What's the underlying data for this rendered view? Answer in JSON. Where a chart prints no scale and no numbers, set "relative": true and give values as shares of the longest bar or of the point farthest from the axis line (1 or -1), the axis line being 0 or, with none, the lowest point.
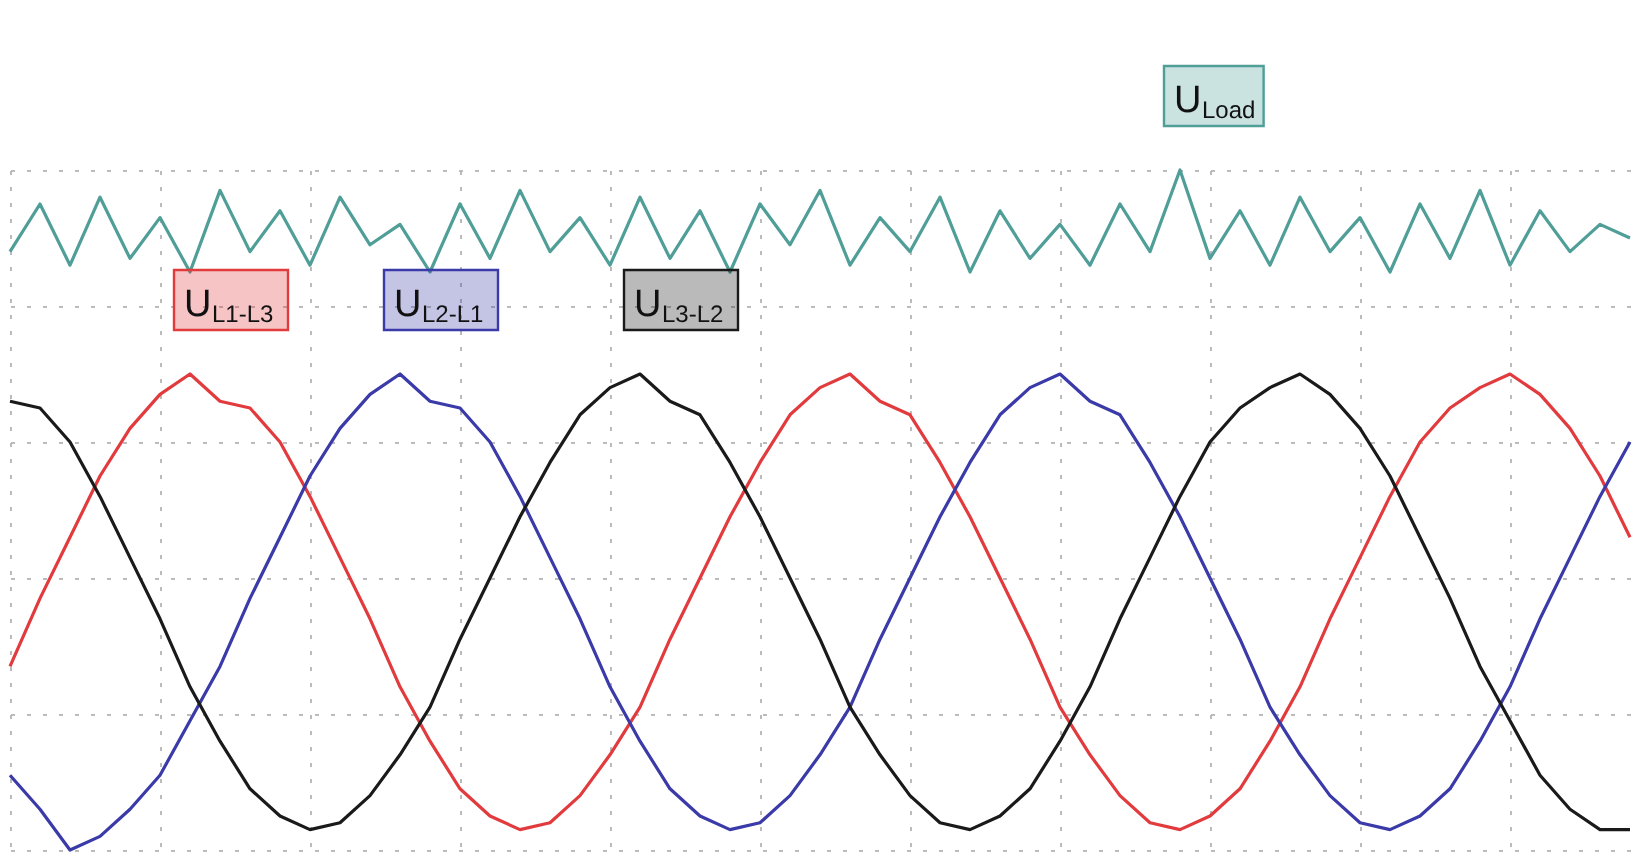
{
  "chart_data": {
    "type": "line",
    "relative": true,
    "grid": true,
    "legend": false,
    "categories": [
      null,
      null,
      null,
      null,
      null,
      null,
      null,
      null,
      null,
      null,
      null,
      null,
      null,
      null,
      null,
      null,
      null,
      null,
      null,
      null,
      null,
      null,
      null,
      null,
      null,
      null,
      null,
      null,
      null,
      null,
      null,
      null,
      null,
      null,
      null,
      null,
      null,
      null,
      null,
      null,
      null,
      null,
      null,
      null,
      null,
      null,
      null,
      null,
      null,
      null,
      null,
      null,
      null,
      null,
      null
    ],
    "series": [
      {
        "name": "U$_{Load}$",
        "color": "#4f9e97",
        "values": [
          0.88,
          0.95,
          0.86,
          0.96,
          0.87,
          0.93,
          0.85,
          0.97,
          0.88,
          0.94,
          0.86,
          0.96,
          0.89,
          0.92,
          0.85,
          0.95,
          0.87,
          0.97,
          0.88,
          0.93,
          0.86,
          0.96,
          0.87,
          0.94,
          0.85,
          0.95,
          0.89,
          0.97,
          0.86,
          0.93,
          0.88,
          0.96,
          0.85,
          0.94,
          0.87,
          0.92,
          0.86,
          0.95,
          0.88,
          1.0,
          0.87,
          0.94,
          0.86,
          0.96,
          0.88,
          0.93,
          0.85,
          0.95,
          0.87,
          0.97,
          0.86,
          0.94,
          0.88,
          0.92,
          0.9
        ]
      },
      {
        "name": "U$_{L1-L3}$",
        "color": "#e23b3e",
        "values": [
          0.27,
          0.37,
          0.46,
          0.55,
          0.62,
          0.67,
          0.7,
          0.66,
          0.65,
          0.6,
          0.52,
          0.43,
          0.34,
          0.24,
          0.16,
          0.09,
          0.05,
          0.03,
          0.04,
          0.08,
          0.14,
          0.21,
          0.31,
          0.4,
          0.49,
          0.57,
          0.64,
          0.68,
          0.7,
          0.66,
          0.64,
          0.57,
          0.49,
          0.4,
          0.31,
          0.21,
          0.14,
          0.08,
          0.04,
          0.03,
          0.05,
          0.09,
          0.16,
          0.24,
          0.34,
          0.43,
          0.52,
          0.6,
          0.65,
          0.68,
          0.7,
          0.67,
          0.62,
          0.55,
          0.46
        ]
      },
      {
        "name": "U$_{L2-L1}$",
        "color": "#3a3aa8",
        "values": [
          0.11,
          0.06,
          0.0,
          0.02,
          0.06,
          0.11,
          0.19,
          0.27,
          0.37,
          0.46,
          0.55,
          0.62,
          0.67,
          0.7,
          0.66,
          0.65,
          0.6,
          0.52,
          0.43,
          0.34,
          0.24,
          0.16,
          0.09,
          0.05,
          0.03,
          0.04,
          0.08,
          0.14,
          0.21,
          0.31,
          0.4,
          0.49,
          0.57,
          0.64,
          0.68,
          0.7,
          0.66,
          0.64,
          0.57,
          0.49,
          0.4,
          0.31,
          0.21,
          0.14,
          0.08,
          0.04,
          0.03,
          0.05,
          0.09,
          0.16,
          0.24,
          0.34,
          0.43,
          0.52,
          0.6
        ]
      },
      {
        "name": "U$_{L3-L2}$",
        "color": "#1a1a1a",
        "values": [
          0.66,
          0.65,
          0.6,
          0.52,
          0.43,
          0.34,
          0.24,
          0.16,
          0.09,
          0.05,
          0.03,
          0.04,
          0.08,
          0.14,
          0.21,
          0.31,
          0.4,
          0.49,
          0.57,
          0.64,
          0.68,
          0.7,
          0.66,
          0.64,
          0.57,
          0.49,
          0.4,
          0.31,
          0.21,
          0.14,
          0.08,
          0.04,
          0.03,
          0.05,
          0.09,
          0.16,
          0.24,
          0.34,
          0.43,
          0.52,
          0.6,
          0.65,
          0.68,
          0.7,
          0.67,
          0.62,
          0.55,
          0.46,
          0.37,
          0.27,
          0.19,
          0.11,
          0.06,
          0.03,
          0.03
        ]
      }
    ]
  }
}
